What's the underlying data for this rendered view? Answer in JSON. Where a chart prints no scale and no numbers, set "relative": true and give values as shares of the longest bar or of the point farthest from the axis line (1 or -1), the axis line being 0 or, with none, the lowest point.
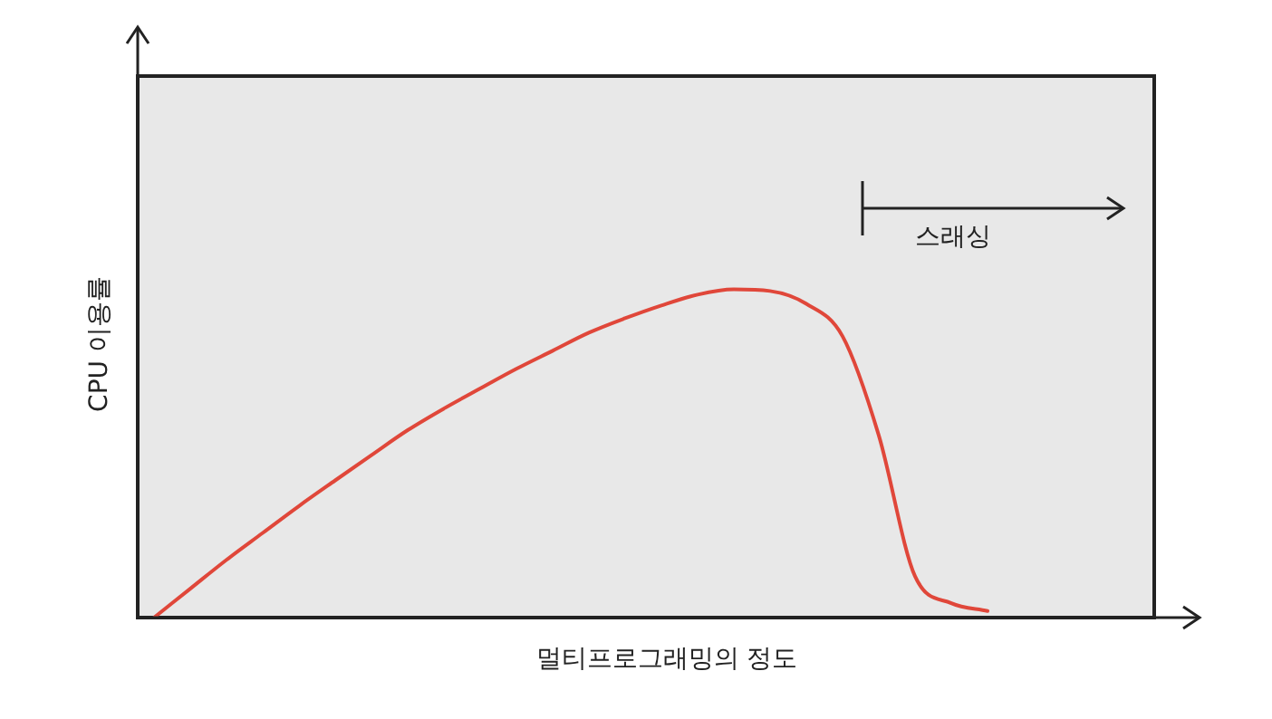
{
  "chart_data": {
    "type": "line",
    "relative": true,
    "xlabel": "멀티프로그래밍의 정도",
    "ylabel": "CPU 이용률",
    "annotations": [
      "스래싱"
    ],
    "categories": [
      null,
      null,
      null,
      null,
      null,
      null,
      null,
      null,
      null,
      null,
      null,
      null,
      null,
      null,
      null,
      null,
      null,
      null,
      null,
      null,
      null,
      null,
      null,
      null
    ],
    "series": [
      {
        "color": "#e0473a",
        "values": [
          0,
          0.088,
          0.176,
          0.258,
          0.34,
          0.418,
          0.495,
          0.571,
          0.637,
          0.698,
          0.758,
          0.813,
          0.868,
          0.912,
          0.951,
          0.984,
          1,
          0.995,
          0.956,
          0.857,
          0.555,
          0.126,
          0.044,
          0.02
        ]
      }
    ],
    "legend": false,
    "marker": "none",
    "line_style": "solid"
  }
}
